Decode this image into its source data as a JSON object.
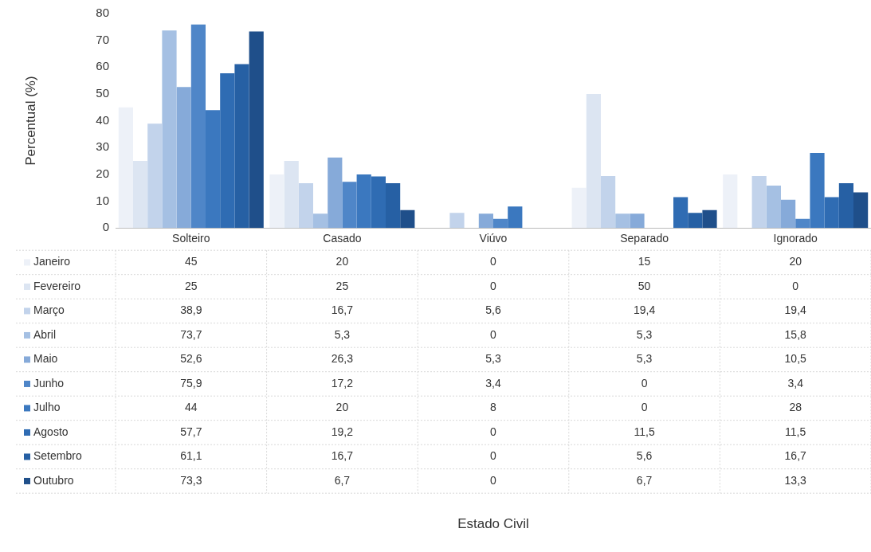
{
  "chart_data": {
    "type": "bar",
    "annotations": [
      "Estado Civil"
    ],
    "ylabel": "Percentual (%)",
    "categories": [
      "Solteiro",
      "Casado",
      "Viúvo",
      "Separado",
      "Ignorado"
    ],
    "ylim": [
      0,
      80
    ],
    "yticks": [
      0,
      10,
      20,
      30,
      40,
      50,
      60,
      70,
      80
    ],
    "grid": false,
    "legend": "bottom",
    "series": [
      {
        "name": "Janeiro",
        "color": "#edf1f8",
        "values": [
          45,
          20,
          0,
          15,
          20
        ],
        "value_labels": [
          "45",
          "20",
          "0",
          "15",
          "20"
        ]
      },
      {
        "name": "Fevereiro",
        "color": "#dce5f2",
        "values": [
          25,
          25,
          0,
          50,
          0
        ],
        "value_labels": [
          "25",
          "25",
          "0",
          "50",
          "0"
        ]
      },
      {
        "name": "Março",
        "color": "#c2d3eb",
        "values": [
          38.9,
          16.7,
          5.6,
          19.4,
          19.4
        ],
        "value_labels": [
          "38,9",
          "16,7",
          "5,6",
          "19,4",
          "19,4"
        ]
      },
      {
        "name": "Abril",
        "color": "#a5c0e3",
        "values": [
          73.7,
          5.3,
          0,
          5.3,
          15.8
        ],
        "value_labels": [
          "73,7",
          "5,3",
          "0",
          "5,3",
          "15,8"
        ]
      },
      {
        "name": "Maio",
        "color": "#86aad9",
        "values": [
          52.6,
          26.3,
          5.3,
          5.3,
          10.5
        ],
        "value_labels": [
          "52,6",
          "26,3",
          "5,3",
          "5,3",
          "10,5"
        ]
      },
      {
        "name": "Junho",
        "color": "#4f86c8",
        "values": [
          75.9,
          17.2,
          3.4,
          0,
          3.4
        ],
        "value_labels": [
          "75,9",
          "17,2",
          "3,4",
          "0",
          "3,4"
        ]
      },
      {
        "name": "Julho",
        "color": "#3b78bf",
        "values": [
          44,
          20,
          8,
          0,
          28
        ],
        "value_labels": [
          "44",
          "20",
          "8",
          "0",
          "28"
        ]
      },
      {
        "name": "Agosto",
        "color": "#2f6cb3",
        "values": [
          57.7,
          19.2,
          0,
          11.5,
          11.5
        ],
        "value_labels": [
          "57,7",
          "19,2",
          "0",
          "11,5",
          "11,5"
        ]
      },
      {
        "name": "Setembro",
        "color": "#2660a4",
        "values": [
          61.1,
          16.7,
          0,
          5.6,
          16.7
        ],
        "value_labels": [
          "61,1",
          "16,7",
          "0",
          "5,6",
          "16,7"
        ]
      },
      {
        "name": "Outubro",
        "color": "#1f4f8a",
        "values": [
          73.3,
          6.7,
          0,
          6.7,
          13.3
        ],
        "value_labels": [
          "73,3",
          "6,7",
          "0",
          "6,7",
          "13,3"
        ]
      }
    ]
  }
}
